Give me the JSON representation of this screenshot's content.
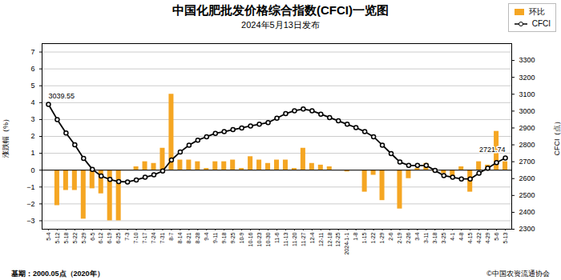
{
  "chart_data": {
    "type": "bar",
    "title": "中国化肥批发价格综合指数(CFCI)一览图",
    "subtitle": "2024年5月13日发布",
    "ylabel": "涨跌幅（%）",
    "y2label": "CFCI（点）",
    "footnotes": [
      "基期：2000.05点（2020年）",
      "©中国农资流通协会"
    ],
    "categories": [
      "5-4",
      "5-12",
      "5-18",
      "5-22",
      "5-29",
      "6-5",
      "6-12",
      "6-19",
      "6-25",
      "7-3",
      "7-10",
      "7-17",
      "7-24",
      "7-31",
      "8-7",
      "8-14",
      "8-21",
      "8-28",
      "9-4",
      "9-11",
      "9-18",
      "9-25",
      "10-9",
      "10-16",
      "10-23",
      "10-30",
      "11-6",
      "11-13",
      "11-20",
      "11-27",
      "12-4",
      "12-11",
      "12-18",
      "12-25",
      "2024-1-1",
      "1-8",
      "1-15",
      "1-22",
      "1-29",
      "2-6",
      "2-19",
      "2-26",
      "3-4",
      "3-11",
      "3-18",
      "3-25",
      "4-1",
      "4-8",
      "4-15",
      "4-22",
      "4-29",
      "5-6",
      "5-13"
    ],
    "series": [
      {
        "name": "环比",
        "type": "bar",
        "color": "#f5a623",
        "values": [
          0.0,
          -2.1,
          -1.2,
          -1.2,
          -2.9,
          -1.1,
          -1.4,
          -3.0,
          -3.0,
          0.0,
          0.2,
          0.5,
          0.4,
          1.3,
          4.5,
          0.6,
          0.6,
          0.5,
          0.1,
          0.5,
          0.5,
          0.6,
          0.1,
          0.8,
          0.6,
          0.4,
          0.6,
          0.6,
          0.1,
          1.3,
          0.4,
          0.3,
          0.2,
          0.0,
          -0.1,
          0.0,
          -1.3,
          -0.3,
          -1.8,
          0.0,
          -2.3,
          -0.5,
          0.1,
          0.4,
          -0.1,
          -0.2,
          -0.4,
          0.2,
          -1.3,
          0.5,
          0.3,
          2.3,
          0.5
        ]
      },
      {
        "name": "CFCI",
        "type": "line",
        "axis": "y2",
        "color": "#000000",
        "marker": "circle",
        "values": [
          3039.55,
          2950,
          2870,
          2800,
          2720,
          2655,
          2615,
          2595,
          2582,
          2580,
          2592,
          2608,
          2622,
          2645,
          2710,
          2758,
          2798,
          2828,
          2848,
          2868,
          2878,
          2890,
          2900,
          2912,
          2922,
          2932,
          2958,
          2985,
          3002,
          3012,
          3002,
          2982,
          2962,
          2942,
          2922,
          2902,
          2878,
          2848,
          2798,
          2748,
          2698,
          2678,
          2678,
          2678,
          2648,
          2618,
          2608,
          2598,
          2598,
          2632,
          2662,
          2695,
          2721.74
        ]
      }
    ],
    "annotations": [
      {
        "text": "3039.55",
        "x": "5-4",
        "y": 3039.55,
        "axis": "y2"
      },
      {
        "text": "2721.74",
        "x": "5-13",
        "y": 2721.74,
        "axis": "y2"
      }
    ],
    "ylim": [
      -3.5,
      7.5
    ],
    "yticks": [
      -3,
      -2,
      -1,
      0,
      1,
      2,
      3,
      4,
      5,
      6,
      7
    ],
    "y2lim": [
      2300,
      3400
    ],
    "y2ticks": [
      2300,
      2400,
      2500,
      2600,
      2700,
      2800,
      2900,
      3000,
      3100,
      3200,
      3300
    ],
    "grid": true,
    "legend": "upper right"
  }
}
